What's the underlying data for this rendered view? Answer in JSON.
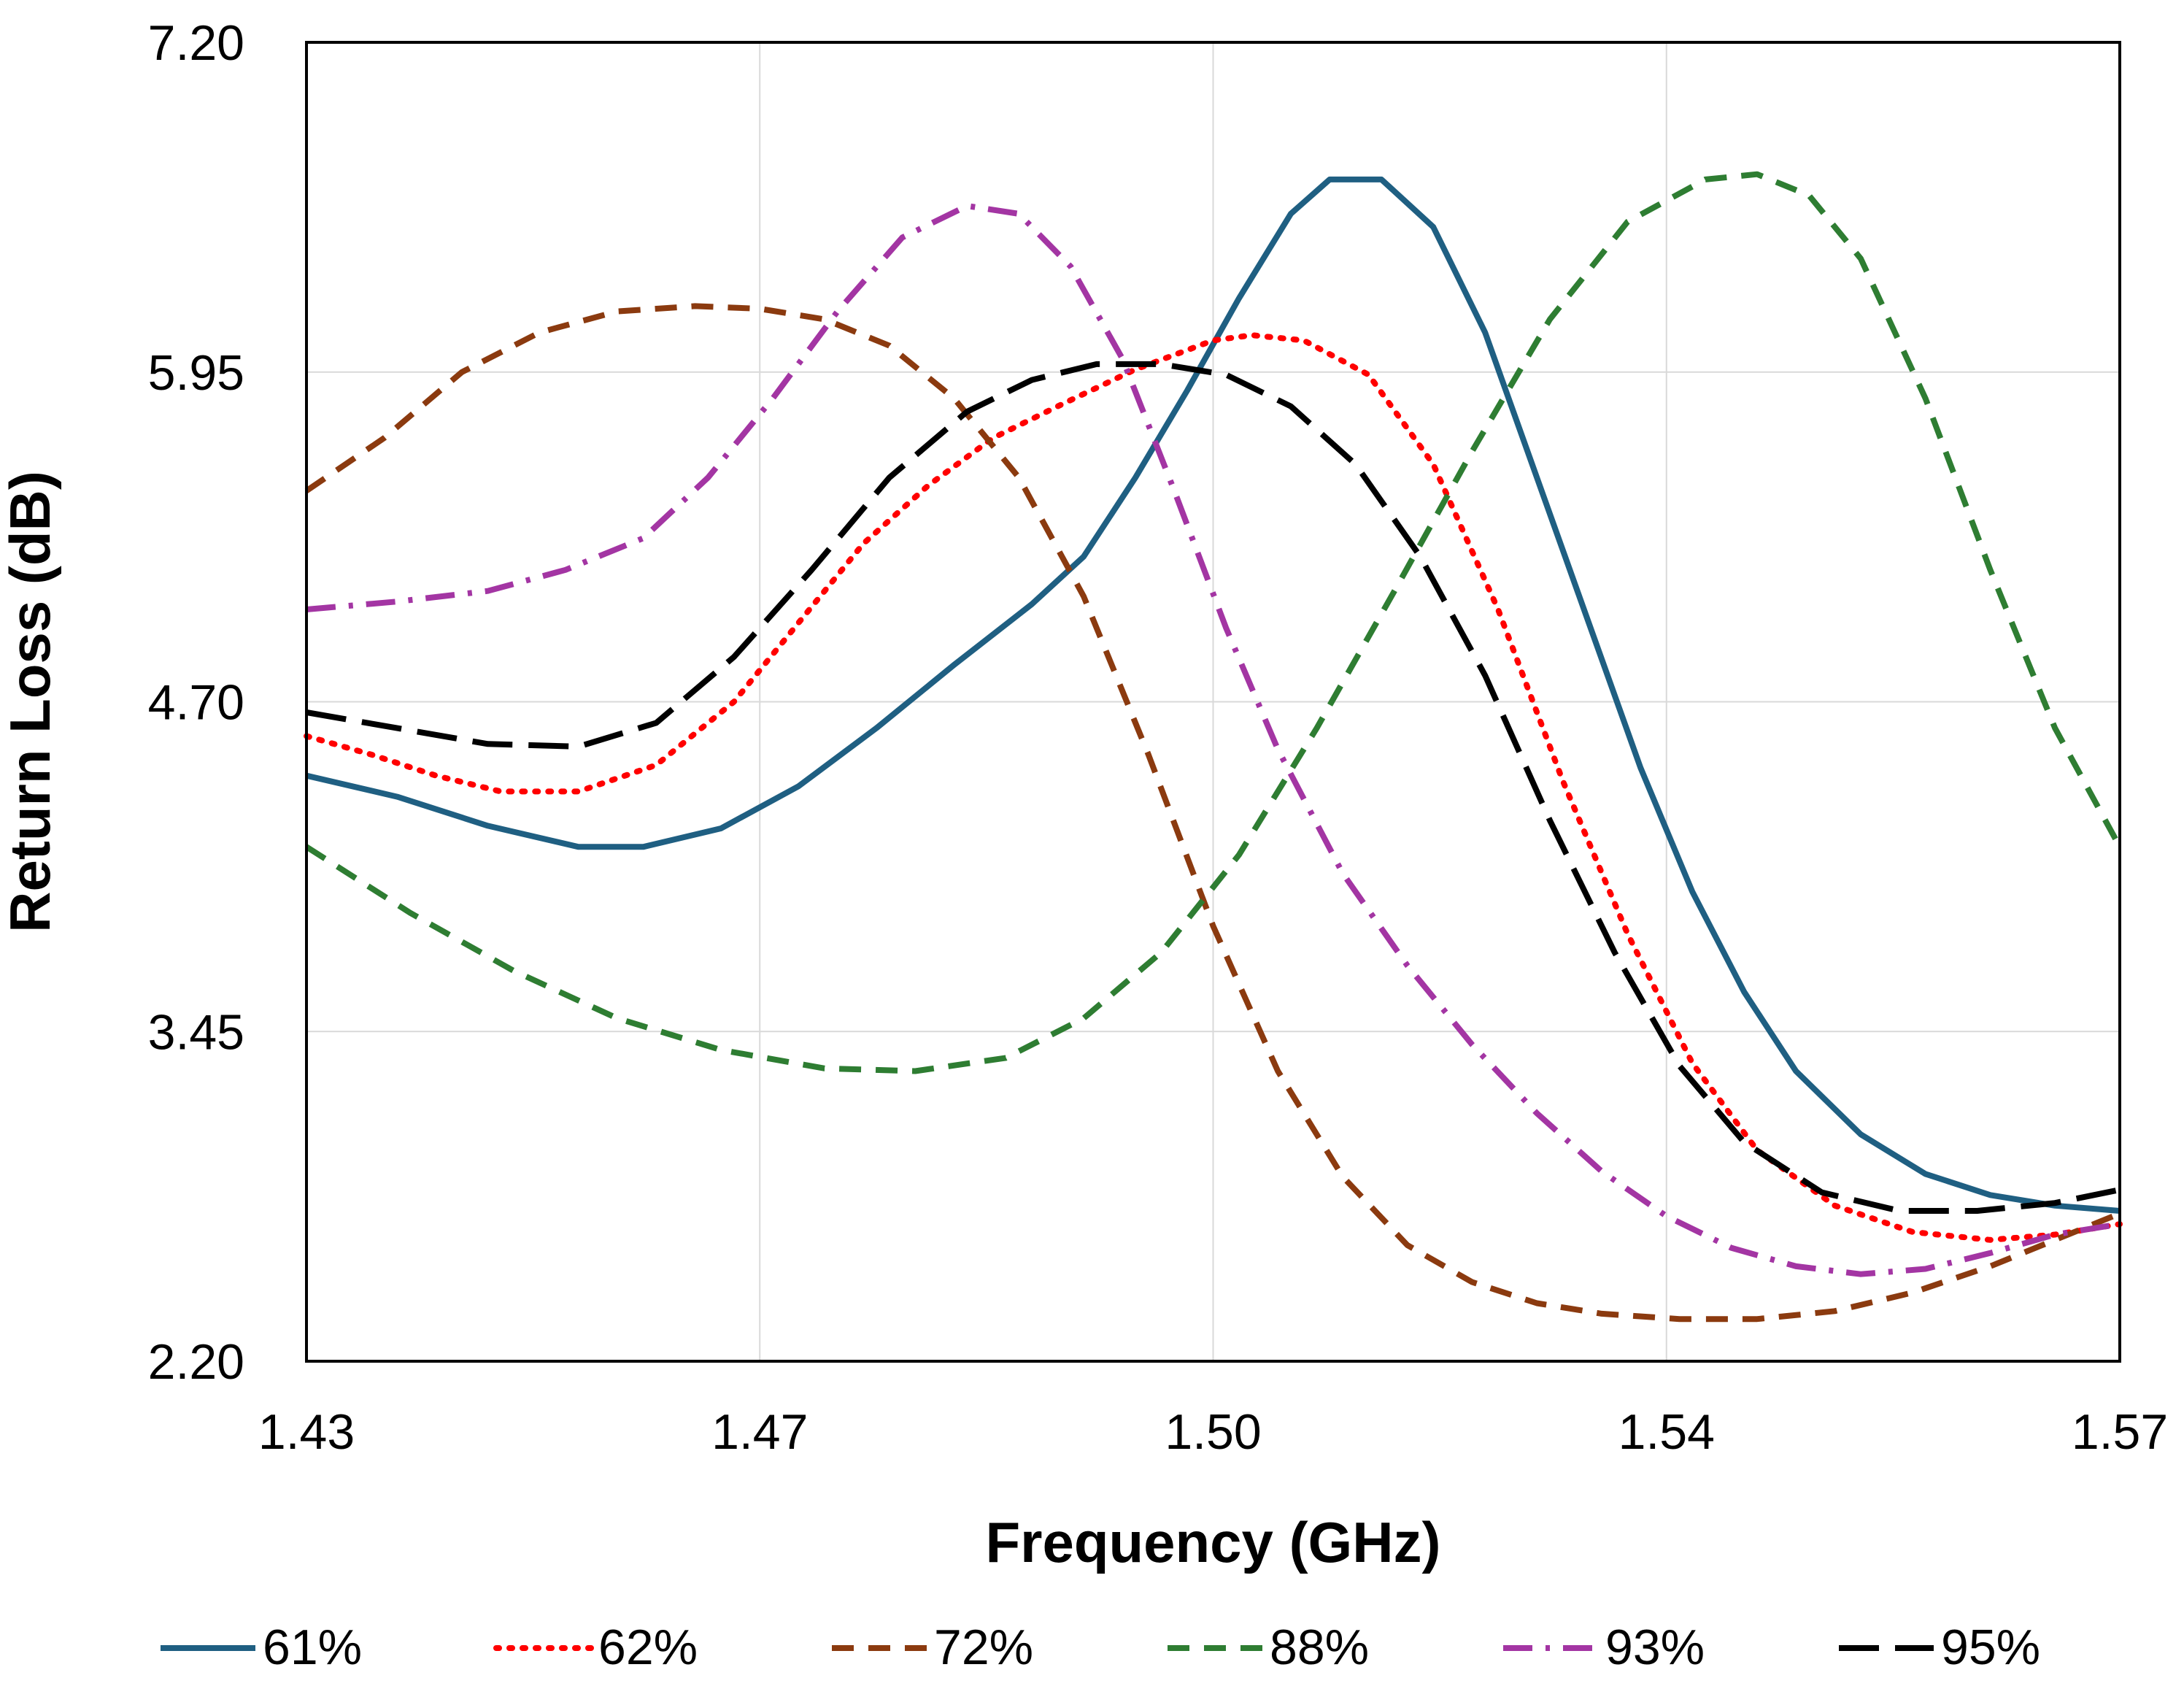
{
  "chart_data": {
    "type": "line",
    "title": "",
    "xlabel": "Frequency (GHz)",
    "ylabel": "Return Loss (dB)",
    "xlim": [
      1.43,
      1.57
    ],
    "ylim": [
      2.2,
      7.2
    ],
    "xticks": [
      1.43,
      1.465,
      1.5,
      1.535,
      1.57
    ],
    "xtick_labels": [
      "1.43",
      "1.47",
      "1.50",
      "1.54",
      "1.57"
    ],
    "yticks": [
      2.2,
      3.45,
      4.7,
      5.95,
      7.2
    ],
    "ytick_labels": [
      "2.20",
      "3.45",
      "4.70",
      "5.95",
      "7.20"
    ],
    "grid": true,
    "legend_position": "bottom",
    "series": [
      {
        "name": "61%",
        "color": "#1f5f82",
        "style": "solid",
        "points": [
          [
            1.43,
            4.42
          ],
          [
            1.437,
            4.34
          ],
          [
            1.444,
            4.23
          ],
          [
            1.451,
            4.15
          ],
          [
            1.456,
            4.15
          ],
          [
            1.462,
            4.22
          ],
          [
            1.468,
            4.38
          ],
          [
            1.474,
            4.6
          ],
          [
            1.48,
            4.84
          ],
          [
            1.486,
            5.07
          ],
          [
            1.49,
            5.25
          ],
          [
            1.494,
            5.55
          ],
          [
            1.498,
            5.88
          ],
          [
            1.502,
            6.23
          ],
          [
            1.506,
            6.55
          ],
          [
            1.509,
            6.68
          ],
          [
            1.513,
            6.68
          ],
          [
            1.517,
            6.5
          ],
          [
            1.521,
            6.1
          ],
          [
            1.525,
            5.55
          ],
          [
            1.529,
            5.0
          ],
          [
            1.533,
            4.45
          ],
          [
            1.537,
            3.98
          ],
          [
            1.541,
            3.6
          ],
          [
            1.545,
            3.3
          ],
          [
            1.55,
            3.06
          ],
          [
            1.555,
            2.91
          ],
          [
            1.56,
            2.83
          ],
          [
            1.565,
            2.79
          ],
          [
            1.57,
            2.77
          ]
        ]
      },
      {
        "name": "62%",
        "color": "#ff0000",
        "style": "dotted",
        "points": [
          [
            1.43,
            4.57
          ],
          [
            1.435,
            4.5
          ],
          [
            1.44,
            4.42
          ],
          [
            1.445,
            4.36
          ],
          [
            1.451,
            4.36
          ],
          [
            1.457,
            4.46
          ],
          [
            1.463,
            4.7
          ],
          [
            1.468,
            5.0
          ],
          [
            1.473,
            5.3
          ],
          [
            1.478,
            5.52
          ],
          [
            1.483,
            5.7
          ],
          [
            1.488,
            5.82
          ],
          [
            1.494,
            5.96
          ],
          [
            1.5,
            6.07
          ],
          [
            1.503,
            6.09
          ],
          [
            1.507,
            6.07
          ],
          [
            1.512,
            5.94
          ],
          [
            1.517,
            5.6
          ],
          [
            1.522,
            5.05
          ],
          [
            1.527,
            4.4
          ],
          [
            1.532,
            3.82
          ],
          [
            1.537,
            3.33
          ],
          [
            1.542,
            3.0
          ],
          [
            1.548,
            2.79
          ],
          [
            1.554,
            2.69
          ],
          [
            1.56,
            2.66
          ],
          [
            1.565,
            2.68
          ],
          [
            1.57,
            2.72
          ]
        ]
      },
      {
        "name": "72%",
        "color": "#8b3a0f",
        "style": "dashed",
        "points": [
          [
            1.43,
            5.5
          ],
          [
            1.436,
            5.7
          ],
          [
            1.442,
            5.95
          ],
          [
            1.448,
            6.1
          ],
          [
            1.454,
            6.18
          ],
          [
            1.46,
            6.2
          ],
          [
            1.465,
            6.19
          ],
          [
            1.47,
            6.15
          ],
          [
            1.475,
            6.05
          ],
          [
            1.48,
            5.85
          ],
          [
            1.485,
            5.55
          ],
          [
            1.49,
            5.1
          ],
          [
            1.495,
            4.5
          ],
          [
            1.5,
            3.85
          ],
          [
            1.505,
            3.3
          ],
          [
            1.51,
            2.9
          ],
          [
            1.515,
            2.64
          ],
          [
            1.52,
            2.5
          ],
          [
            1.525,
            2.42
          ],
          [
            1.53,
            2.38
          ],
          [
            1.536,
            2.36
          ],
          [
            1.542,
            2.36
          ],
          [
            1.548,
            2.39
          ],
          [
            1.554,
            2.46
          ],
          [
            1.56,
            2.56
          ],
          [
            1.565,
            2.66
          ],
          [
            1.57,
            2.76
          ]
        ]
      },
      {
        "name": "88%",
        "color": "#2e7d32",
        "style": "dashed",
        "points": [
          [
            1.43,
            4.15
          ],
          [
            1.438,
            3.9
          ],
          [
            1.446,
            3.68
          ],
          [
            1.454,
            3.5
          ],
          [
            1.462,
            3.38
          ],
          [
            1.47,
            3.31
          ],
          [
            1.477,
            3.3
          ],
          [
            1.484,
            3.35
          ],
          [
            1.49,
            3.5
          ],
          [
            1.496,
            3.75
          ],
          [
            1.502,
            4.12
          ],
          [
            1.508,
            4.6
          ],
          [
            1.514,
            5.12
          ],
          [
            1.52,
            5.65
          ],
          [
            1.526,
            6.15
          ],
          [
            1.532,
            6.52
          ],
          [
            1.538,
            6.68
          ],
          [
            1.542,
            6.7
          ],
          [
            1.546,
            6.62
          ],
          [
            1.55,
            6.38
          ],
          [
            1.555,
            5.85
          ],
          [
            1.56,
            5.2
          ],
          [
            1.565,
            4.6
          ],
          [
            1.57,
            4.15
          ]
        ]
      },
      {
        "name": "93%",
        "color": "#a335a3",
        "style": "dashdot",
        "points": [
          [
            1.43,
            5.05
          ],
          [
            1.437,
            5.08
          ],
          [
            1.444,
            5.12
          ],
          [
            1.45,
            5.2
          ],
          [
            1.456,
            5.32
          ],
          [
            1.461,
            5.55
          ],
          [
            1.466,
            5.85
          ],
          [
            1.471,
            6.18
          ],
          [
            1.476,
            6.46
          ],
          [
            1.481,
            6.58
          ],
          [
            1.485,
            6.55
          ],
          [
            1.489,
            6.35
          ],
          [
            1.493,
            6.0
          ],
          [
            1.497,
            5.5
          ],
          [
            1.501,
            4.98
          ],
          [
            1.505,
            4.52
          ],
          [
            1.51,
            4.05
          ],
          [
            1.515,
            3.7
          ],
          [
            1.52,
            3.4
          ],
          [
            1.525,
            3.14
          ],
          [
            1.53,
            2.92
          ],
          [
            1.535,
            2.75
          ],
          [
            1.54,
            2.63
          ],
          [
            1.545,
            2.56
          ],
          [
            1.55,
            2.53
          ],
          [
            1.555,
            2.55
          ],
          [
            1.56,
            2.61
          ],
          [
            1.565,
            2.68
          ],
          [
            1.57,
            2.72
          ]
        ]
      },
      {
        "name": "95%",
        "color": "#000000",
        "style": "longdash",
        "points": [
          [
            1.43,
            4.66
          ],
          [
            1.437,
            4.6
          ],
          [
            1.444,
            4.54
          ],
          [
            1.451,
            4.53
          ],
          [
            1.457,
            4.62
          ],
          [
            1.463,
            4.87
          ],
          [
            1.469,
            5.2
          ],
          [
            1.475,
            5.55
          ],
          [
            1.481,
            5.8
          ],
          [
            1.486,
            5.92
          ],
          [
            1.491,
            5.98
          ],
          [
            1.496,
            5.98
          ],
          [
            1.501,
            5.94
          ],
          [
            1.506,
            5.82
          ],
          [
            1.511,
            5.6
          ],
          [
            1.516,
            5.25
          ],
          [
            1.521,
            4.8
          ],
          [
            1.526,
            4.25
          ],
          [
            1.531,
            3.75
          ],
          [
            1.536,
            3.32
          ],
          [
            1.541,
            3.03
          ],
          [
            1.547,
            2.84
          ],
          [
            1.553,
            2.77
          ],
          [
            1.559,
            2.77
          ],
          [
            1.565,
            2.8
          ],
          [
            1.57,
            2.85
          ]
        ]
      }
    ]
  }
}
